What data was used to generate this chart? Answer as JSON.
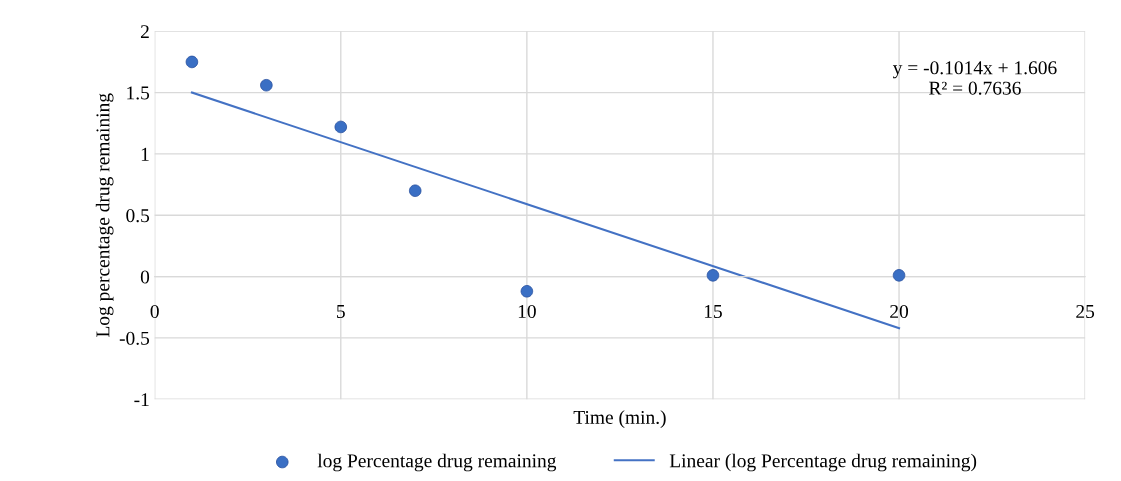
{
  "chart_data": {
    "type": "scatter",
    "xlabel": "Time (min.)",
    "ylabel": "Log percentage drug remaining",
    "annotations": [
      "y = -0.1014x + 1.606\nR² = 0.7636"
    ],
    "x": [
      1,
      3,
      5,
      7,
      10,
      15,
      20
    ],
    "series": [
      {
        "name": "log Percentage drug remaining",
        "color": "#3a6fc4",
        "values": [
          1.75,
          1.56,
          1.22,
          0.7,
          -0.12,
          0.01,
          0.01
        ],
        "marker": "circle"
      },
      {
        "name": "Linear (log Percentage drug remaining)",
        "type": "line",
        "color": "#4472c4",
        "x": [
          1,
          20
        ],
        "values": [
          1.5,
          -0.42
        ],
        "marker": "none"
      }
    ],
    "xlim": [
      0,
      25
    ],
    "xticks": [
      0,
      5,
      10,
      15,
      20,
      25
    ],
    "ylim": [
      -1,
      2
    ],
    "yticks": [
      -1,
      -0.5,
      0,
      0.5,
      1,
      1.5,
      2
    ],
    "grid": true,
    "legend": "bottom"
  }
}
